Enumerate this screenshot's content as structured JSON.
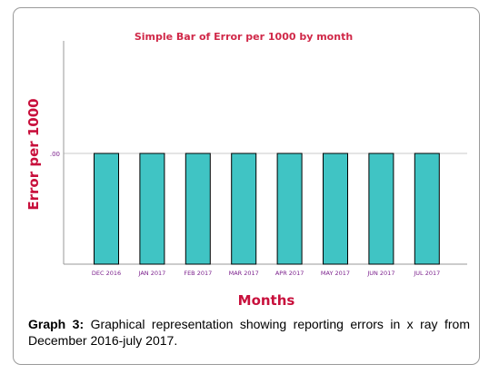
{
  "chart_data": {
    "type": "bar",
    "title": "Simple Bar of Error per 1000 by month",
    "xlabel": "Months",
    "ylabel": "Error per 1000",
    "categories": [
      "DEC 2016",
      "JAN 2017",
      "FEB 2017",
      "MAR 2017",
      "APR 2017",
      "MAY 2017",
      "JUN 2017",
      "JUL 2017"
    ],
    "values": [
      0,
      0,
      0,
      0,
      0,
      0,
      0,
      0
    ],
    "y_tick_labels": [
      ".00"
    ],
    "grid": "horizontal line at tick",
    "colors": {
      "bar_fill": "#40c4c4",
      "bar_stroke": "#000000",
      "title": "#d02848",
      "axis_label": "#c8103c",
      "tick_label": "#7b1f8c",
      "grid": "#c8c8c8"
    }
  },
  "caption": {
    "label": "Graph 3:",
    "text": "Graphical representation showing reporting errors in x ray from December 2016-july 2017."
  }
}
